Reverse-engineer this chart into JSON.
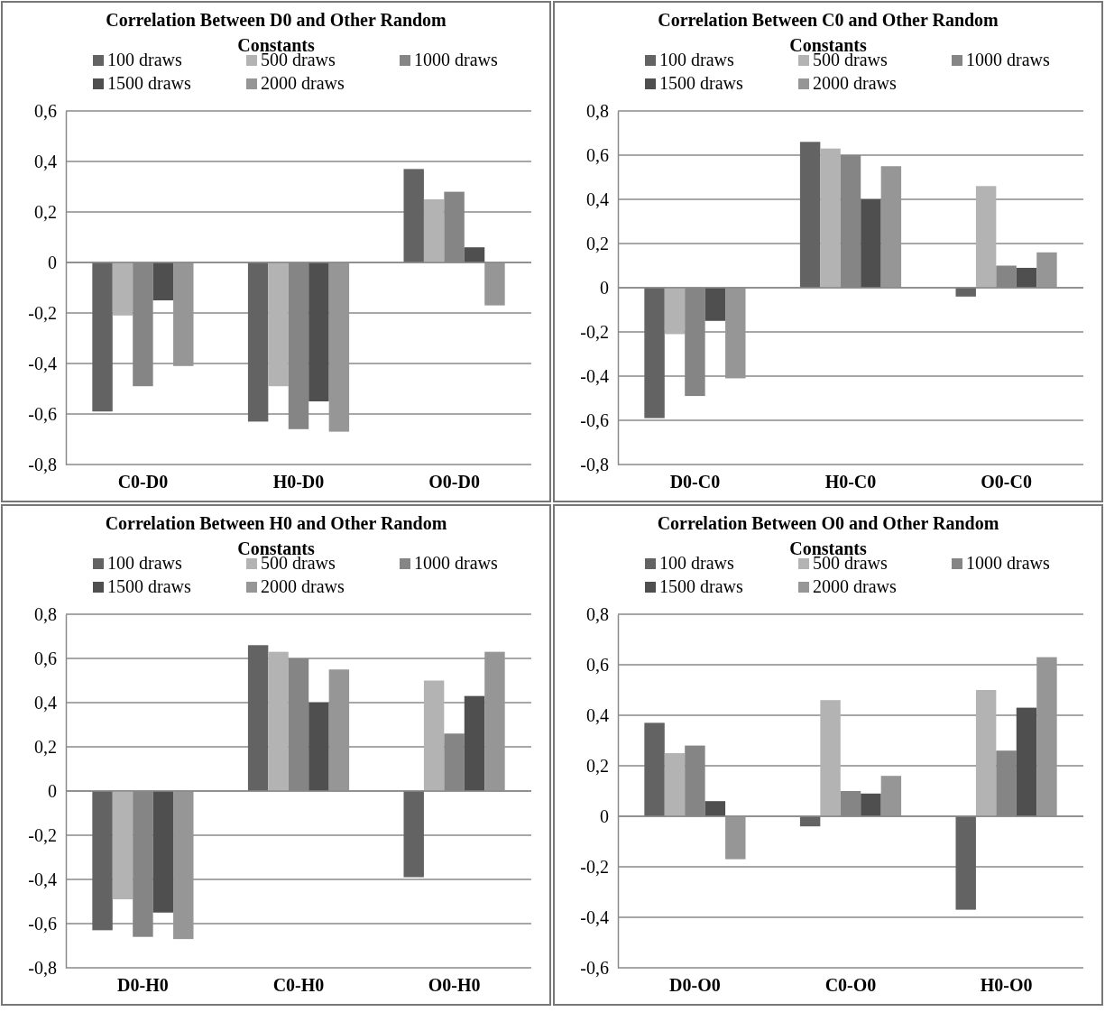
{
  "chart_data": [
    {
      "type": "bar",
      "title": "Correlation Between D0 and Other Random Constants",
      "categories": [
        "C0-D0",
        "H0-D0",
        "O0-D0"
      ],
      "series": [
        {
          "name": "100 draws",
          "color": "#636363",
          "values": [
            -0.59,
            -0.63,
            0.37
          ]
        },
        {
          "name": "500 draws",
          "color": "#b3b3b3",
          "values": [
            -0.21,
            -0.49,
            0.25
          ]
        },
        {
          "name": "1000 draws",
          "color": "#858585",
          "values": [
            -0.49,
            -0.66,
            0.28
          ]
        },
        {
          "name": "1500 draws",
          "color": "#4f4f4f",
          "values": [
            -0.15,
            -0.55,
            0.06
          ]
        },
        {
          "name": "2000 draws",
          "color": "#969696",
          "values": [
            -0.41,
            -0.67,
            -0.17
          ]
        }
      ],
      "ylim": [
        -0.8,
        0.6
      ],
      "yticks": [
        {
          "value": -0.8,
          "label": "-0,8"
        },
        {
          "value": -0.6,
          "label": "-0,6"
        },
        {
          "value": -0.4,
          "label": "-0,4"
        },
        {
          "value": -0.2,
          "label": "-0,2"
        },
        {
          "value": 0,
          "label": "0"
        },
        {
          "value": 0.2,
          "label": "0,2"
        },
        {
          "value": 0.4,
          "label": "0,4"
        },
        {
          "value": 0.6,
          "label": "0,6"
        }
      ],
      "grid": "y",
      "legend": "top"
    },
    {
      "type": "bar",
      "title": "Correlation Between C0 and Other Random Constants",
      "categories": [
        "D0-C0",
        "H0-C0",
        "O0-C0"
      ],
      "series": [
        {
          "name": "100 draws",
          "color": "#636363",
          "values": [
            -0.59,
            0.66,
            -0.04
          ]
        },
        {
          "name": "500 draws",
          "color": "#b3b3b3",
          "values": [
            -0.21,
            0.63,
            0.46
          ]
        },
        {
          "name": "1000 draws",
          "color": "#858585",
          "values": [
            -0.49,
            0.6,
            0.1
          ]
        },
        {
          "name": "1500 draws",
          "color": "#4f4f4f",
          "values": [
            -0.15,
            0.4,
            0.09
          ]
        },
        {
          "name": "2000 draws",
          "color": "#969696",
          "values": [
            -0.41,
            0.55,
            0.16
          ]
        }
      ],
      "ylim": [
        -0.8,
        0.8
      ],
      "yticks": [
        {
          "value": -0.8,
          "label": "-0,8"
        },
        {
          "value": -0.6,
          "label": "-0,6"
        },
        {
          "value": -0.4,
          "label": "-0,4"
        },
        {
          "value": -0.2,
          "label": "-0,2"
        },
        {
          "value": 0,
          "label": "0"
        },
        {
          "value": 0.2,
          "label": "0,2"
        },
        {
          "value": 0.4,
          "label": "0,4"
        },
        {
          "value": 0.6,
          "label": "0,6"
        },
        {
          "value": 0.8,
          "label": "0,8"
        }
      ],
      "grid": "y",
      "legend": "top"
    },
    {
      "type": "bar",
      "title": "Correlation Between H0 and Other Random Constants",
      "categories": [
        "D0-H0",
        "C0-H0",
        "O0-H0"
      ],
      "series": [
        {
          "name": "100 draws",
          "color": "#636363",
          "values": [
            -0.63,
            0.66,
            -0.39
          ]
        },
        {
          "name": "500 draws",
          "color": "#b3b3b3",
          "values": [
            -0.49,
            0.63,
            0.5
          ]
        },
        {
          "name": "1000 draws",
          "color": "#858585",
          "values": [
            -0.66,
            0.6,
            0.26
          ]
        },
        {
          "name": "1500 draws",
          "color": "#4f4f4f",
          "values": [
            -0.55,
            0.4,
            0.43
          ]
        },
        {
          "name": "2000 draws",
          "color": "#969696",
          "values": [
            -0.67,
            0.55,
            0.63
          ]
        }
      ],
      "ylim": [
        -0.8,
        0.8
      ],
      "yticks": [
        {
          "value": -0.8,
          "label": "-0,8"
        },
        {
          "value": -0.6,
          "label": "-0,6"
        },
        {
          "value": -0.4,
          "label": "-0,4"
        },
        {
          "value": -0.2,
          "label": "-0,2"
        },
        {
          "value": 0,
          "label": "0"
        },
        {
          "value": 0.2,
          "label": "0,2"
        },
        {
          "value": 0.4,
          "label": "0,4"
        },
        {
          "value": 0.6,
          "label": "0,6"
        },
        {
          "value": 0.8,
          "label": "0,8"
        }
      ],
      "grid": "y",
      "legend": "top"
    },
    {
      "type": "bar",
      "title": "Correlation Between O0 and Other Random Constants",
      "categories": [
        "D0-O0",
        "C0-O0",
        "H0-O0"
      ],
      "series": [
        {
          "name": "100 draws",
          "color": "#636363",
          "values": [
            0.37,
            -0.04,
            -0.37
          ]
        },
        {
          "name": "500 draws",
          "color": "#b3b3b3",
          "values": [
            0.25,
            0.46,
            0.5
          ]
        },
        {
          "name": "1000 draws",
          "color": "#858585",
          "values": [
            0.28,
            0.1,
            0.26
          ]
        },
        {
          "name": "1500 draws",
          "color": "#4f4f4f",
          "values": [
            0.06,
            0.09,
            0.43
          ]
        },
        {
          "name": "2000 draws",
          "color": "#969696",
          "values": [
            -0.17,
            0.16,
            0.63
          ]
        }
      ],
      "ylim": [
        -0.6,
        0.8
      ],
      "yticks": [
        {
          "value": -0.6,
          "label": "-0,6"
        },
        {
          "value": -0.4,
          "label": "-0,4"
        },
        {
          "value": -0.2,
          "label": "-0,2"
        },
        {
          "value": 0,
          "label": "0"
        },
        {
          "value": 0.2,
          "label": "0,2"
        },
        {
          "value": 0.4,
          "label": "0,4"
        },
        {
          "value": 0.6,
          "label": "0,6"
        },
        {
          "value": 0.8,
          "label": "0,8"
        }
      ],
      "grid": "y",
      "legend": "top"
    }
  ]
}
